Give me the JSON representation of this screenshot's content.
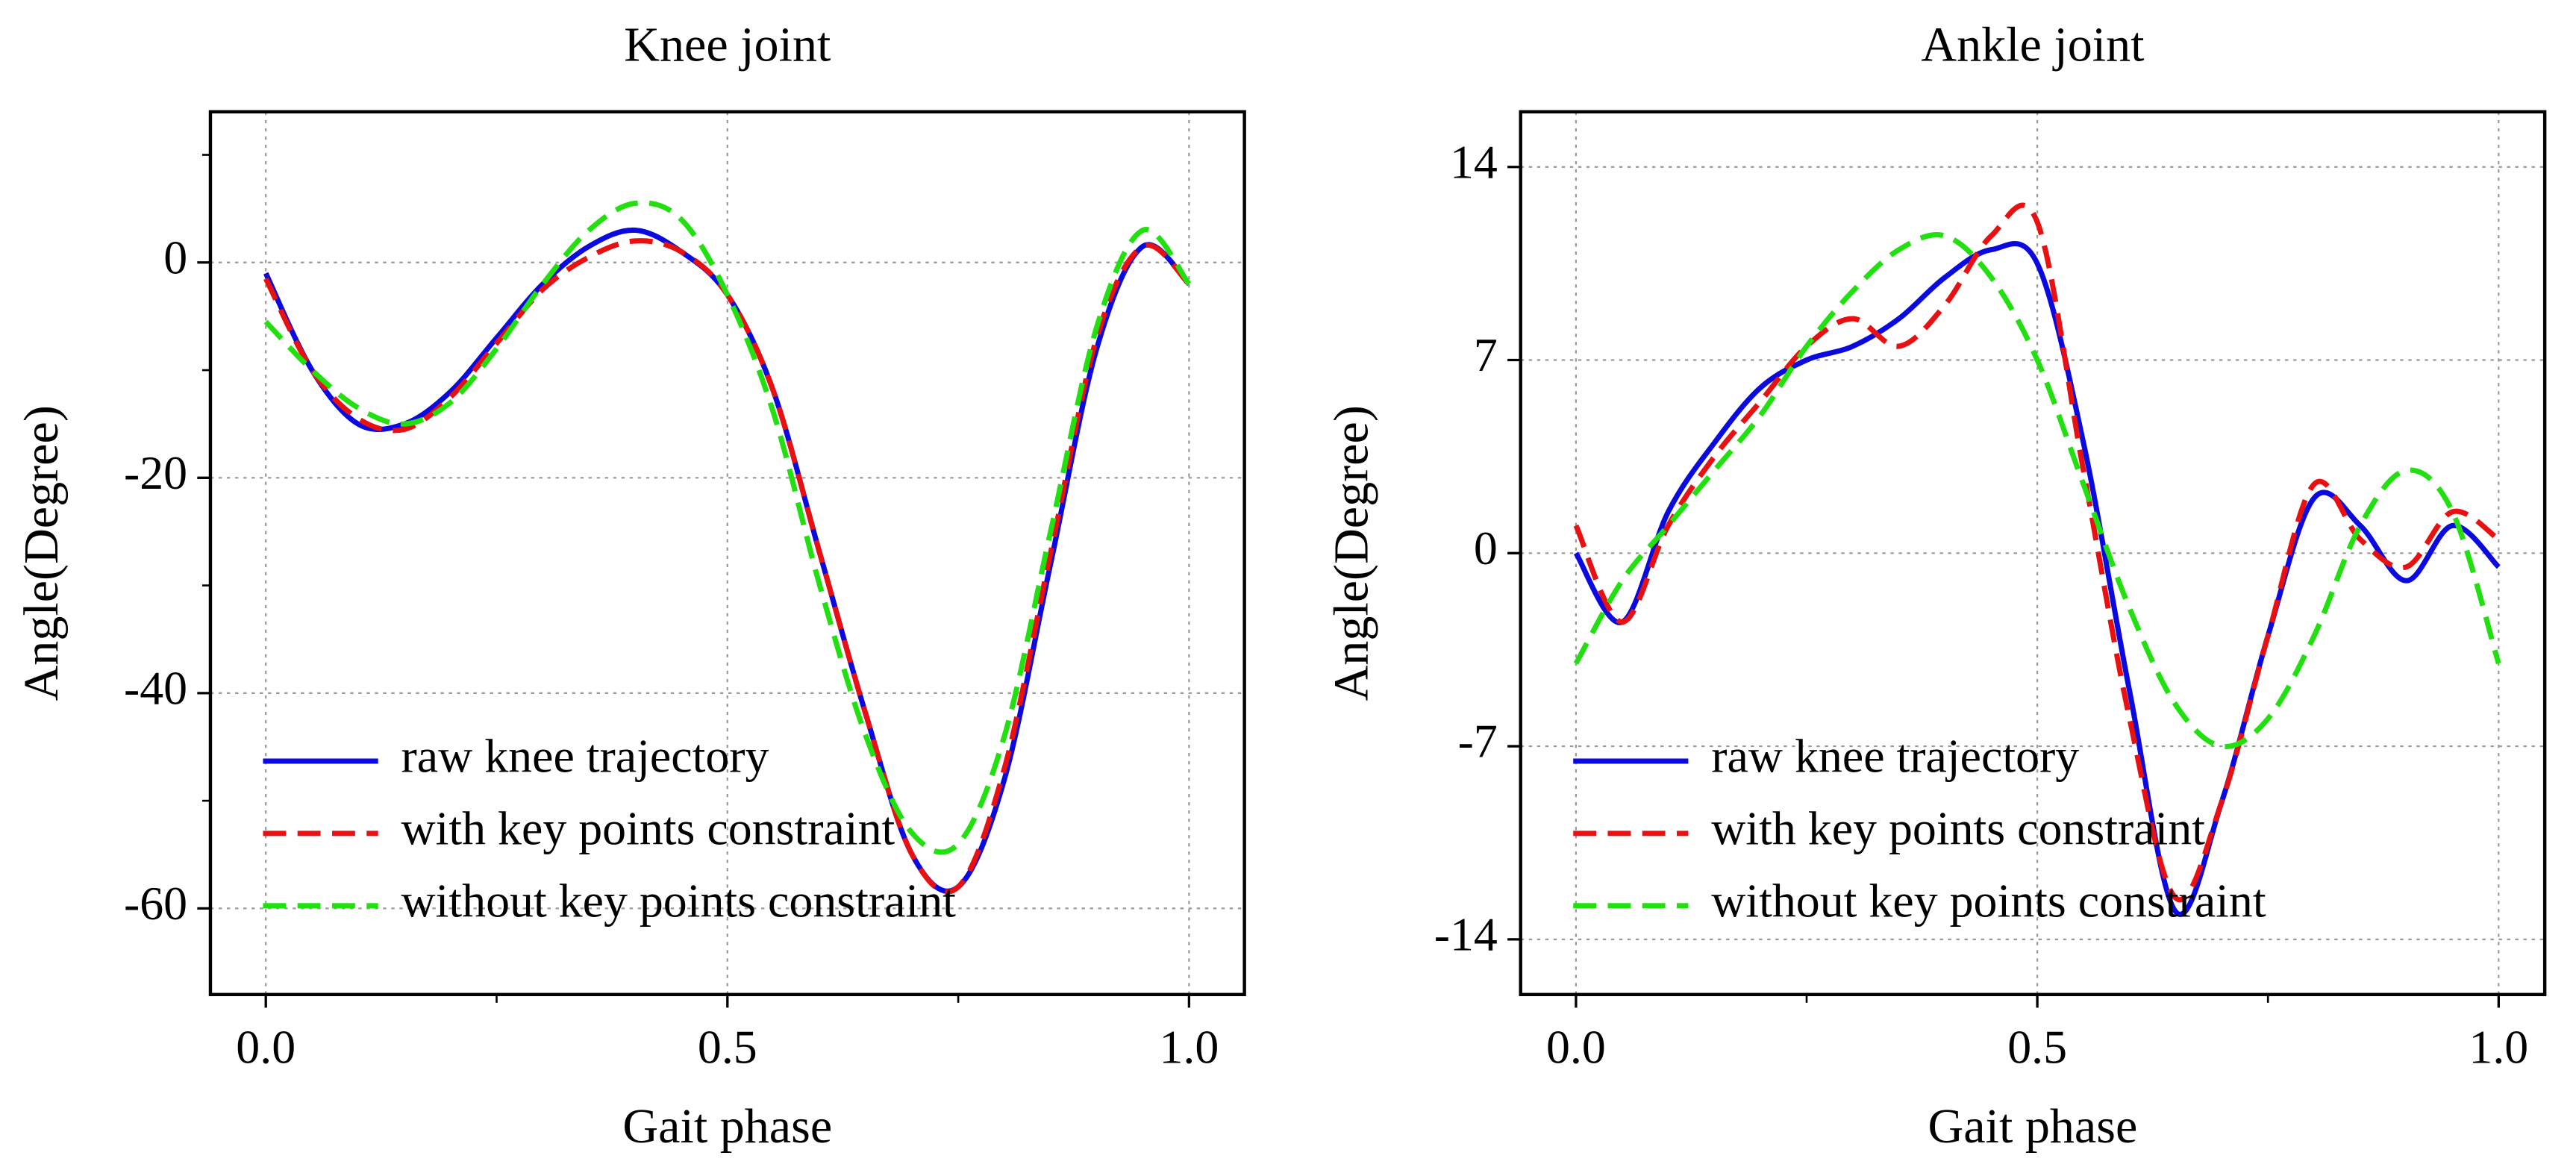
{
  "chart_data": [
    {
      "type": "line",
      "title": "Knee joint",
      "x_label": "Gait phase",
      "y_label": "Angle(Degree)",
      "x": [
        0,
        0.05,
        0.1,
        0.15,
        0.2,
        0.25,
        0.3,
        0.35,
        0.4,
        0.45,
        0.5,
        0.55,
        0.6,
        0.65,
        0.7,
        0.75,
        0.8,
        0.85,
        0.9,
        0.95,
        1.0
      ],
      "series": [
        {
          "name": "raw knee trajectory",
          "color": "#0a0ae0",
          "dash": false,
          "values": [
            -1,
            -10,
            -15,
            -15,
            -12,
            -7,
            -2,
            1.5,
            3,
            1,
            -3,
            -12,
            -27,
            -42,
            -55,
            -58,
            -48,
            -28,
            -8,
            1.5,
            -2
          ]
        },
        {
          "name": "with key points constraint",
          "color": "#e81010",
          "dash": true,
          "values": [
            -1.5,
            -10,
            -14.5,
            -15.5,
            -12.5,
            -7.5,
            -2.5,
            0.5,
            2,
            1,
            -3,
            -12,
            -27,
            -42,
            -55,
            -58,
            -47,
            -27,
            -7,
            1.5,
            -2
          ]
        },
        {
          "name": "without key points constraint",
          "color": "#22e010",
          "dash": true,
          "values": [
            -5.5,
            -10,
            -13.5,
            -15,
            -13,
            -8,
            -2,
            3,
            5.5,
            4,
            -3,
            -14,
            -30,
            -44,
            -53,
            -54,
            -44,
            -25,
            -6,
            3,
            -2
          ]
        }
      ],
      "xlim": [
        -0.06,
        1.06
      ],
      "ylim": [
        -68,
        14
      ],
      "xticks": [
        {
          "value": 0,
          "label": "0.0"
        },
        0.5,
        {
          "value": 1,
          "label": "1.0"
        }
      ],
      "yticks": [
        -60,
        -40,
        -20,
        0
      ],
      "minor_xticks": [
        0.25,
        0.75
      ],
      "minor_yticks": [
        -50,
        -30,
        -10,
        10
      ],
      "grid": true,
      "legend": "lower left"
    },
    {
      "type": "line",
      "title": "Ankle joint",
      "x_label": "Gait phase",
      "y_label": "Angle(Degree)",
      "x": [
        0,
        0.05,
        0.1,
        0.15,
        0.2,
        0.25,
        0.3,
        0.35,
        0.4,
        0.45,
        0.5,
        0.55,
        0.6,
        0.65,
        0.7,
        0.75,
        0.8,
        0.85,
        0.9,
        0.95,
        1.0
      ],
      "series": [
        {
          "name": "raw knee trajectory",
          "color": "#0a0ae0",
          "dash": false,
          "values": [
            0,
            -2.5,
            1.5,
            4,
            6,
            7,
            7.5,
            8.5,
            10,
            11,
            10.5,
            4,
            -5,
            -13,
            -9,
            -3,
            2,
            1,
            -1,
            1,
            -0.5
          ]
        },
        {
          "name": "with key points constraint",
          "color": "#e81010",
          "dash": true,
          "values": [
            1,
            -2.5,
            1,
            3.5,
            5.5,
            7.5,
            8.5,
            7.5,
            9,
            11.5,
            12,
            3,
            -6,
            -12.5,
            -9,
            -3,
            2.5,
            0.5,
            -0.5,
            1.5,
            0.5
          ]
        },
        {
          "name": "without key points constraint",
          "color": "#22e010",
          "dash": true,
          "values": [
            -4,
            -1,
            1,
            3,
            5,
            7.5,
            9.5,
            11,
            11.5,
            10,
            7,
            2.5,
            -2,
            -5.5,
            -7,
            -6,
            -3,
            1,
            3,
            1.5,
            -4
          ]
        }
      ],
      "xlim": [
        -0.06,
        1.05
      ],
      "ylim": [
        -16,
        16
      ],
      "xticks": [
        {
          "value": 0,
          "label": "0.0"
        },
        0.5,
        {
          "value": 1,
          "label": "1.0"
        }
      ],
      "yticks": [
        -14,
        -7,
        0,
        7,
        14
      ],
      "minor_xticks": [
        0.25,
        0.75
      ],
      "minor_yticks": [],
      "grid": true,
      "legend": "lower left"
    }
  ]
}
